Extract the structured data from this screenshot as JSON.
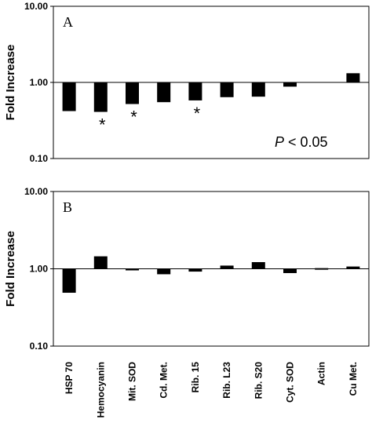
{
  "chart_data": [
    {
      "type": "bar",
      "panel_label": "A",
      "ylabel": "Fold Increase",
      "yscale": "log",
      "ylim": [
        0.1,
        10
      ],
      "yticks": [
        "10.00",
        "1.00",
        "0.10"
      ],
      "baseline": 1,
      "categories": [
        "HSP 70",
        "Hemocyanin",
        "Mit. SOD",
        "Cd. Met.",
        "Rib. 15",
        "Rib. L23",
        "Rib. S20",
        "Cyt. SOD",
        "Actin",
        "Cu Met."
      ],
      "values": [
        0.42,
        0.41,
        0.52,
        0.55,
        0.58,
        0.64,
        0.65,
        0.88,
        null,
        1.32
      ],
      "significant": [
        false,
        true,
        true,
        false,
        true,
        false,
        false,
        false,
        false,
        false
      ],
      "significance_marker": "*",
      "annotation": {
        "italic": "P",
        "rest": " < 0.05"
      },
      "colors": {
        "bar": "#000000",
        "axis": "#000000"
      }
    },
    {
      "type": "bar",
      "panel_label": "B",
      "ylabel": "Fold Increase",
      "yscale": "log",
      "ylim": [
        0.1,
        10
      ],
      "yticks": [
        "10.00",
        "1.00",
        "0.10"
      ],
      "baseline": 1,
      "categories": [
        "HSP 70",
        "Hemocyanin",
        "Mit. SOD",
        "Cd. Met.",
        "Rib. 15",
        "Rib. L23",
        "Rib. S20",
        "Cyt. SOD",
        "Actin",
        "Cu Met."
      ],
      "values": [
        0.49,
        1.45,
        0.96,
        0.85,
        0.92,
        1.1,
        1.22,
        0.88,
        1.02,
        1.07
      ],
      "colors": {
        "bar": "#000000",
        "axis": "#000000"
      }
    }
  ]
}
